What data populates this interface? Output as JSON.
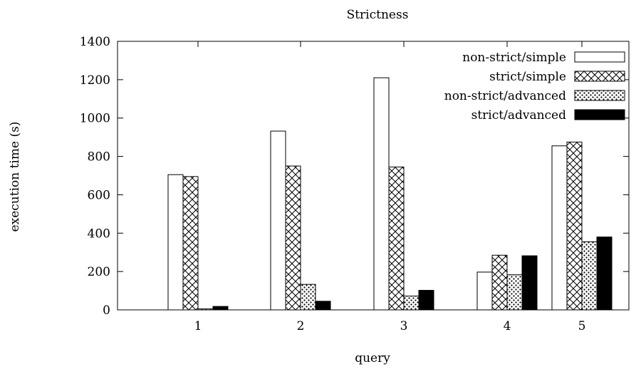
{
  "chart_data": {
    "type": "bar",
    "title": "Strictness",
    "xlabel": "query",
    "ylabel": "execution time (s)",
    "categories": [
      "1",
      "2",
      "3",
      "4",
      "5"
    ],
    "ylim": [
      0,
      1400
    ],
    "yticks": [
      0,
      200,
      400,
      600,
      800,
      1000,
      1200,
      1400
    ],
    "grid": false,
    "legend_position": "top-right",
    "series": [
      {
        "name": "non-strict/simple",
        "pattern": "white",
        "values": [
          705,
          932,
          1210,
          197,
          855
        ]
      },
      {
        "name": "strict/simple",
        "pattern": "crosshatch",
        "values": [
          695,
          750,
          745,
          285,
          875
        ]
      },
      {
        "name": "non-strict/advanced",
        "pattern": "dots",
        "values": [
          5,
          133,
          72,
          183,
          355
        ]
      },
      {
        "name": "strict/advanced",
        "pattern": "black",
        "values": [
          18,
          45,
          102,
          282,
          380
        ]
      }
    ]
  }
}
